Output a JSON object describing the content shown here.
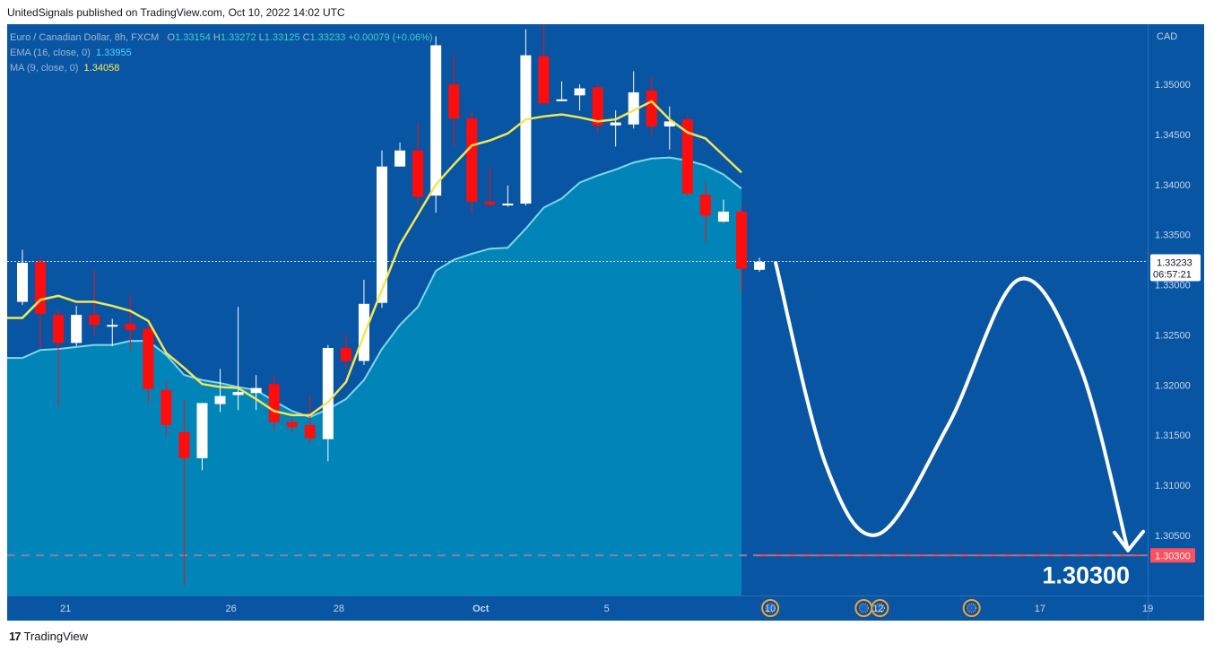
{
  "header": {
    "published_text": "UnitedSignals published on TradingView.com, Oct 10, 2022 14:02 UTC"
  },
  "legend": {
    "symbol": "Euro / Canadian Dollar, 8h, FXCM",
    "open_label": "O",
    "open": "1.33154",
    "high_label": "H",
    "high": "1.33272",
    "low_label": "L",
    "low": "1.33125",
    "close_label": "C",
    "close": "1.33233",
    "change": "+0.00079 (+0.06%)",
    "ema_label": "EMA (16, close, 0)",
    "ema_value": "1.33955",
    "ma_label": "MA (9, close, 0)",
    "ma_value": "1.34058"
  },
  "footer": {
    "brand": "TradingView",
    "logo_text": "17"
  },
  "chart_data": {
    "type": "candlestick",
    "symbol": "Euro / Canadian Dollar",
    "timeframe": "8h",
    "currency": "CAD",
    "ylim": [
      1.299,
      1.356
    ],
    "y_ticks": [
      "1.35000",
      "1.34500",
      "1.34000",
      "1.33500",
      "1.33000",
      "1.32500",
      "1.32000",
      "1.31500",
      "1.31000",
      "1.30500"
    ],
    "x_ticks": [
      {
        "label": "21",
        "bar": 2.4
      },
      {
        "label": "26",
        "bar": 11.6
      },
      {
        "label": "28",
        "bar": 17.6
      },
      {
        "label": "Oct",
        "bar": 25.5
      },
      {
        "label": "5",
        "bar": 32.5
      },
      {
        "label": "10",
        "bar": 41.6
      },
      {
        "label": "12",
        "bar": 47.6
      },
      {
        "label": "17",
        "bar": 56.6
      },
      {
        "label": "19",
        "bar": 62.6
      }
    ],
    "candles": [
      {
        "o": 1.3283,
        "h": 1.3335,
        "l": 1.328,
        "c": 1.3322
      },
      {
        "o": 1.3323,
        "h": 1.3328,
        "l": 1.3237,
        "c": 1.3271
      },
      {
        "o": 1.327,
        "h": 1.3275,
        "l": 1.3179,
        "c": 1.3242
      },
      {
        "o": 1.3242,
        "h": 1.3279,
        "l": 1.3239,
        "c": 1.327
      },
      {
        "o": 1.327,
        "h": 1.3315,
        "l": 1.3249,
        "c": 1.326
      },
      {
        "o": 1.326,
        "h": 1.3266,
        "l": 1.3239,
        "c": 1.326
      },
      {
        "o": 1.3261,
        "h": 1.329,
        "l": 1.3234,
        "c": 1.3255
      },
      {
        "o": 1.3256,
        "h": 1.3261,
        "l": 1.3182,
        "c": 1.3196
      },
      {
        "o": 1.3195,
        "h": 1.3204,
        "l": 1.3149,
        "c": 1.316
      },
      {
        "o": 1.3153,
        "h": 1.3185,
        "l": 1.3,
        "c": 1.3127
      },
      {
        "o": 1.3127,
        "h": 1.3182,
        "l": 1.3115,
        "c": 1.3182
      },
      {
        "o": 1.3181,
        "h": 1.3216,
        "l": 1.3173,
        "c": 1.3189
      },
      {
        "o": 1.319,
        "h": 1.3278,
        "l": 1.3175,
        "c": 1.3193
      },
      {
        "o": 1.3192,
        "h": 1.321,
        "l": 1.3175,
        "c": 1.3197
      },
      {
        "o": 1.3201,
        "h": 1.321,
        "l": 1.3155,
        "c": 1.3163
      },
      {
        "o": 1.3163,
        "h": 1.3168,
        "l": 1.3152,
        "c": 1.3158
      },
      {
        "o": 1.316,
        "h": 1.319,
        "l": 1.3142,
        "c": 1.3147
      },
      {
        "o": 1.3146,
        "h": 1.324,
        "l": 1.3124,
        "c": 1.3237
      },
      {
        "o": 1.3237,
        "h": 1.325,
        "l": 1.3217,
        "c": 1.3224
      },
      {
        "o": 1.3224,
        "h": 1.3305,
        "l": 1.322,
        "c": 1.3281
      },
      {
        "o": 1.3282,
        "h": 1.3434,
        "l": 1.3277,
        "c": 1.3418
      },
      {
        "o": 1.3418,
        "h": 1.3442,
        "l": 1.3421,
        "c": 1.3434
      },
      {
        "o": 1.3434,
        "h": 1.3462,
        "l": 1.338,
        "c": 1.3388
      },
      {
        "o": 1.3389,
        "h": 1.3548,
        "l": 1.3372,
        "c": 1.3539
      },
      {
        "o": 1.35,
        "h": 1.353,
        "l": 1.3438,
        "c": 1.3466
      },
      {
        "o": 1.3466,
        "h": 1.3473,
        "l": 1.3372,
        "c": 1.3383
      },
      {
        "o": 1.3383,
        "h": 1.3418,
        "l": 1.3378,
        "c": 1.338
      },
      {
        "o": 1.338,
        "h": 1.3399,
        "l": 1.3378,
        "c": 1.3381
      },
      {
        "o": 1.3381,
        "h": 1.3555,
        "l": 1.3379,
        "c": 1.3529
      },
      {
        "o": 1.3528,
        "h": 1.356,
        "l": 1.3484,
        "c": 1.3481
      },
      {
        "o": 1.3485,
        "h": 1.3503,
        "l": 1.3483,
        "c": 1.3485
      },
      {
        "o": 1.3489,
        "h": 1.35,
        "l": 1.3474,
        "c": 1.3496
      },
      {
        "o": 1.3497,
        "h": 1.35,
        "l": 1.3452,
        "c": 1.3459
      },
      {
        "o": 1.3459,
        "h": 1.3474,
        "l": 1.3438,
        "c": 1.3462
      },
      {
        "o": 1.346,
        "h": 1.3513,
        "l": 1.3456,
        "c": 1.3492
      },
      {
        "o": 1.3494,
        "h": 1.3508,
        "l": 1.3449,
        "c": 1.3458
      },
      {
        "o": 1.3458,
        "h": 1.3478,
        "l": 1.3435,
        "c": 1.3463
      },
      {
        "o": 1.3465,
        "h": 1.3469,
        "l": 1.3389,
        "c": 1.3391
      },
      {
        "o": 1.339,
        "h": 1.3402,
        "l": 1.3343,
        "c": 1.3369
      },
      {
        "o": 1.3363,
        "h": 1.3385,
        "l": 1.3362,
        "c": 1.3373
      },
      {
        "o": 1.3373,
        "h": 1.3378,
        "l": 1.3293,
        "c": 1.3316
      },
      {
        "o": 1.3315,
        "h": 1.3327,
        "l": 1.3313,
        "c": 1.3323
      }
    ],
    "ema": {
      "label": "EMA (16, close, 0)",
      "color": "#7fd7e8",
      "values": [
        1.3227,
        1.3235,
        1.3236,
        1.3238,
        1.324,
        1.324,
        1.3244,
        1.3244,
        1.323,
        1.321,
        1.3205,
        1.3202,
        1.3198,
        1.3195,
        1.3184,
        1.3174,
        1.3168,
        1.3176,
        1.3186,
        1.3205,
        1.3236,
        1.326,
        1.3278,
        1.3314,
        1.3325,
        1.3331,
        1.3336,
        1.3337,
        1.3356,
        1.3377,
        1.3386,
        1.3402,
        1.3409,
        1.3415,
        1.3422,
        1.3426,
        1.3427,
        1.3424,
        1.3419,
        1.341,
        1.3396
      ]
    },
    "ma": {
      "label": "MA (9, close, 0)",
      "color": "#f2e655",
      "values": [
        1.3267,
        1.3285,
        1.3289,
        1.3283,
        1.3283,
        1.3279,
        1.3274,
        1.3264,
        1.3232,
        1.3217,
        1.3201,
        1.3198,
        1.3197,
        1.3186,
        1.3174,
        1.317,
        1.317,
        1.3183,
        1.3203,
        1.325,
        1.3295,
        1.334,
        1.337,
        1.34,
        1.342,
        1.3439,
        1.3444,
        1.3451,
        1.3465,
        1.3468,
        1.347,
        1.3467,
        1.3463,
        1.3465,
        1.3474,
        1.3483,
        1.3465,
        1.3452,
        1.3446,
        1.3429,
        1.3412
      ]
    },
    "last_price": {
      "value": "1.33233",
      "countdown": "06:57:21"
    },
    "target": {
      "value": "1.30300",
      "label": "1.30300"
    },
    "forecast_path": [
      {
        "bar": 41.9,
        "y": 1.3322
      },
      {
        "bar": 44.7,
        "y": 1.312
      },
      {
        "bar": 47.6,
        "y": 1.3051
      },
      {
        "bar": 51.5,
        "y": 1.316
      },
      {
        "bar": 55.4,
        "y": 1.3305
      },
      {
        "bar": 58.8,
        "y": 1.322
      },
      {
        "bar": 61.5,
        "y": 1.3035
      }
    ],
    "event_markers": [
      41.6,
      46.8,
      47.7,
      52.8
    ],
    "colors": {
      "background": "#0855a4",
      "bull": "#ffffff",
      "bear": "#ff0c0c",
      "area": "#0185b8",
      "target_line": "#ff4b4b",
      "forecast": "#ffffff"
    }
  }
}
